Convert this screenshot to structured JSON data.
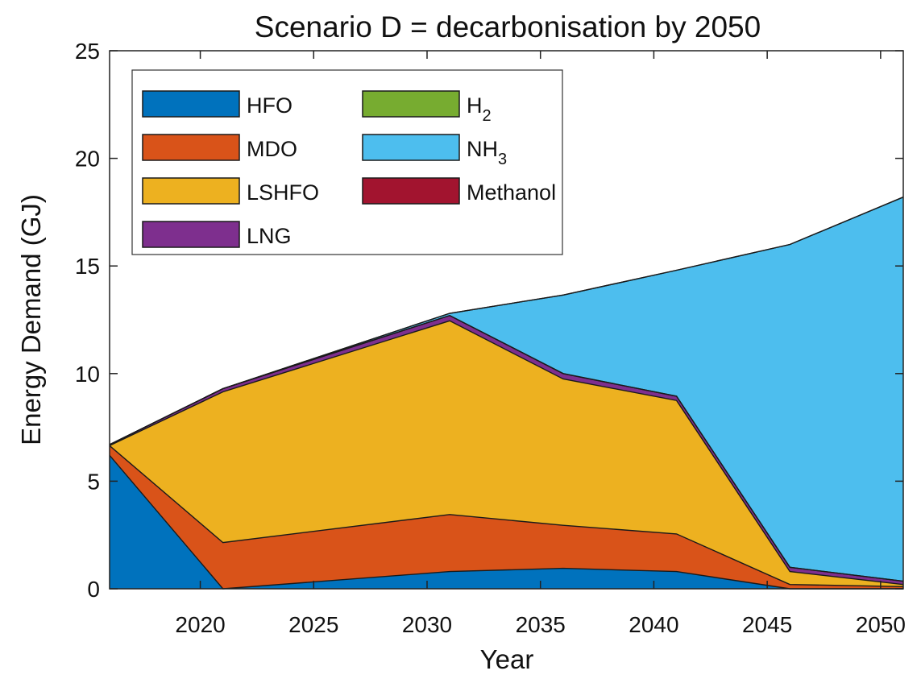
{
  "chart_data": {
    "type": "area",
    "stacked": true,
    "title": "Scenario D = decarbonisation by 2050",
    "xlabel": "Year",
    "ylabel": "Energy Demand (GJ)",
    "xlim": [
      2016,
      2051
    ],
    "ylim": [
      0,
      25
    ],
    "xticks": [
      2020,
      2025,
      2030,
      2035,
      2040,
      2045,
      2050
    ],
    "yticks": [
      0,
      5,
      10,
      15,
      20,
      25
    ],
    "grid": false,
    "legend_position": "top-left",
    "x": [
      2016,
      2021,
      2031,
      2036,
      2041,
      2046,
      2051
    ],
    "series": [
      {
        "name": "HFO",
        "label_sub": "",
        "color": "#0072BD",
        "values": [
          6.2,
          0.0,
          0.8,
          0.95,
          0.8,
          0.0,
          0.0
        ]
      },
      {
        "name": "MDO",
        "label_sub": "",
        "color": "#D95319",
        "values": [
          0.45,
          2.15,
          2.65,
          2.0,
          1.75,
          0.2,
          0.1
        ]
      },
      {
        "name": "LSHFO",
        "label_sub": "",
        "color": "#EDB120",
        "values": [
          0.0,
          7.0,
          9.0,
          6.8,
          6.2,
          0.6,
          0.1
        ]
      },
      {
        "name": "LNG",
        "label_sub": "",
        "color": "#7E2F8E",
        "values": [
          0.05,
          0.15,
          0.25,
          0.25,
          0.2,
          0.2,
          0.15
        ]
      },
      {
        "name": "H",
        "label_sub": "2",
        "color": "#77AC30",
        "values": [
          0,
          0,
          0,
          0,
          0,
          0,
          0
        ]
      },
      {
        "name": "NH",
        "label_sub": "3",
        "color": "#4DBEEE",
        "values": [
          0.0,
          0.0,
          0.1,
          3.65,
          5.85,
          15.0,
          17.85
        ]
      },
      {
        "name": "Methanol",
        "label_sub": "",
        "color": "#A2142F",
        "values": [
          0,
          0,
          0,
          0,
          0,
          0,
          0
        ]
      }
    ]
  }
}
